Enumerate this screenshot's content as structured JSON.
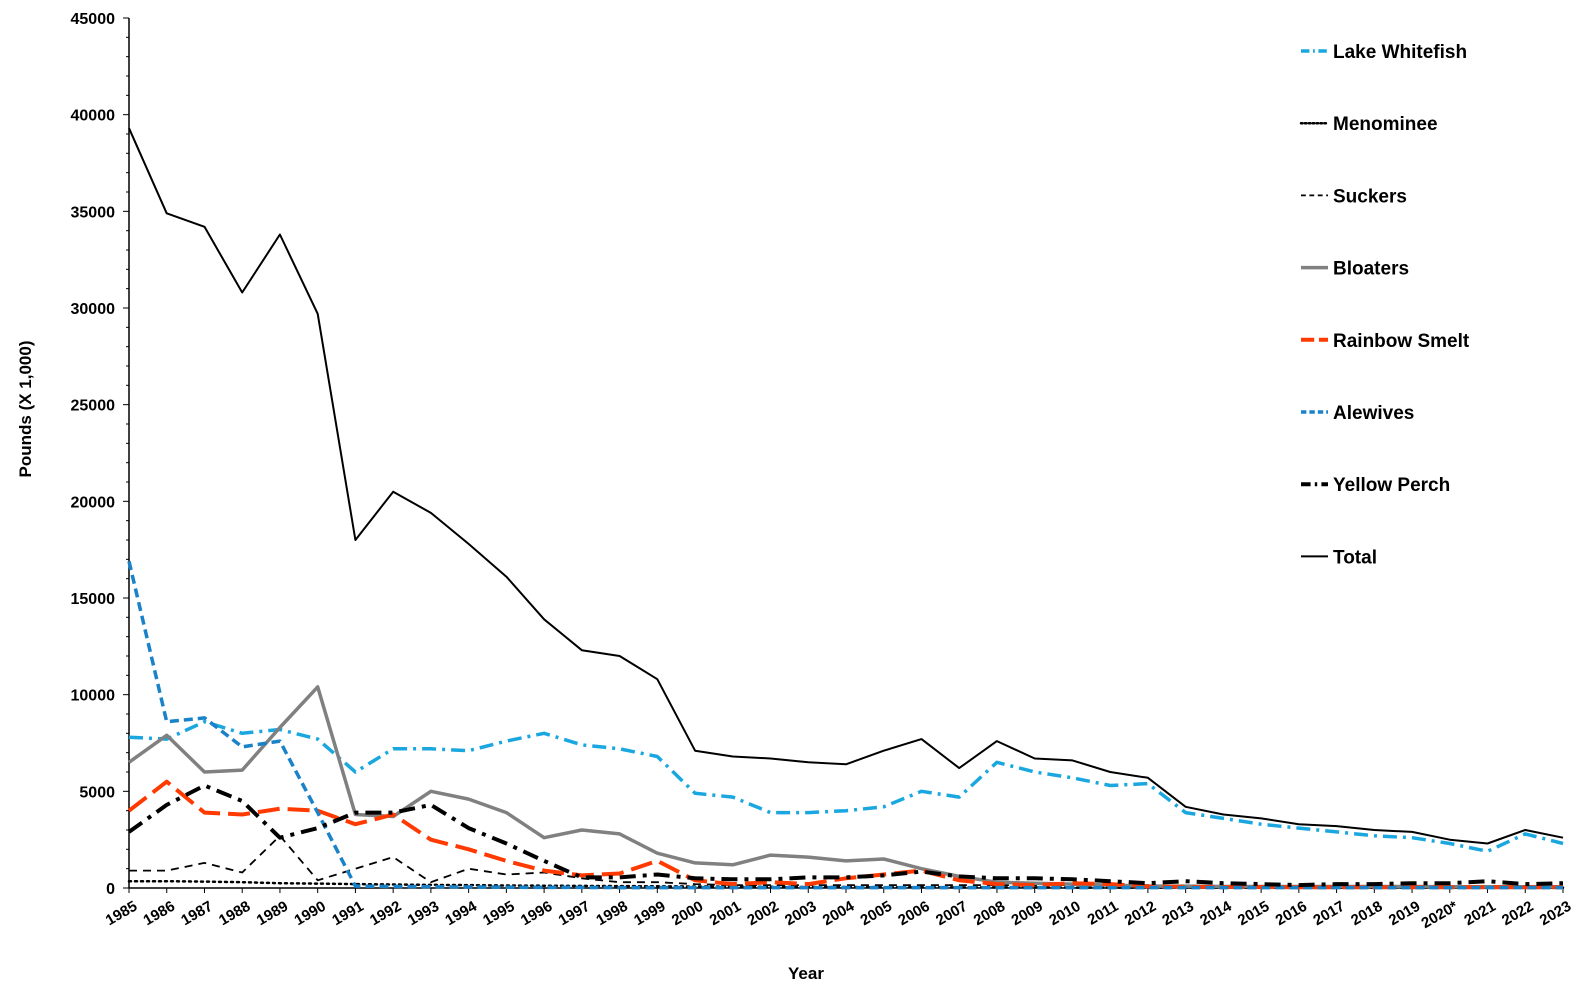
{
  "chart_data": {
    "type": "line",
    "title": "",
    "xlabel": "Year",
    "ylabel": "Pounds (X 1,000)",
    "ylim": [
      0,
      45000
    ],
    "yticks": [
      0,
      5000,
      10000,
      15000,
      20000,
      25000,
      30000,
      35000,
      40000,
      45000
    ],
    "grid": false,
    "legend_position": "right",
    "categories": [
      "1985",
      "1986",
      "1987",
      "1988",
      "1989",
      "1990",
      "1991",
      "1992",
      "1993",
      "1994",
      "1995",
      "1996",
      "1997",
      "1998",
      "1999",
      "2000",
      "2001",
      "2002",
      "2003",
      "2004",
      "2005",
      "2006",
      "2007",
      "2008",
      "2009",
      "2010",
      "2011",
      "2012",
      "2013",
      "2014",
      "2015",
      "2016",
      "2017",
      "2018",
      "2019",
      "2020*",
      "2021",
      "2022",
      "2023"
    ],
    "series": [
      {
        "name": "Lake Whitefish",
        "color": "#1aa7e0",
        "style": "dashdot",
        "values": [
          7800,
          7700,
          8600,
          8000,
          8200,
          7700,
          6000,
          7200,
          7200,
          7100,
          7600,
          8000,
          7400,
          7200,
          6800,
          4900,
          4700,
          3900,
          3900,
          4000,
          4200,
          5000,
          4700,
          6500,
          6000,
          5700,
          5300,
          5400,
          3900,
          3600,
          3300,
          3100,
          2900,
          2700,
          2600,
          2300,
          1900,
          2800,
          2300
        ]
      },
      {
        "name": "Menominee",
        "color": "#000000",
        "style": "dotted",
        "values": [
          350,
          350,
          330,
          300,
          250,
          230,
          200,
          180,
          160,
          150,
          130,
          120,
          110,
          100,
          90,
          80,
          70,
          60,
          50,
          50,
          40,
          40,
          30,
          30,
          30,
          20,
          20,
          20,
          20,
          20,
          20,
          20,
          20,
          20,
          20,
          20,
          20,
          20,
          20
        ]
      },
      {
        "name": "Suckers",
        "color": "#000000",
        "style": "shortdash",
        "values": [
          900,
          900,
          1300,
          800,
          2700,
          400,
          1000,
          1600,
          300,
          1000,
          700,
          800,
          500,
          300,
          300,
          200,
          150,
          150,
          150,
          150,
          150,
          150,
          150,
          150,
          150,
          150,
          150,
          150,
          100,
          100,
          100,
          100,
          100,
          100,
          100,
          100,
          100,
          100,
          100
        ]
      },
      {
        "name": "Bloaters",
        "color": "#808080",
        "style": "solid",
        "values": [
          6500,
          7900,
          6000,
          6100,
          8300,
          10400,
          3800,
          3700,
          5000,
          4600,
          3900,
          2600,
          3000,
          2800,
          1800,
          1300,
          1200,
          1700,
          1600,
          1400,
          1500,
          1000,
          600,
          300,
          250,
          200,
          150,
          100,
          100,
          80,
          80,
          80,
          80,
          80,
          80,
          60,
          60,
          60,
          60
        ]
      },
      {
        "name": "Rainbow Smelt",
        "color": "#ff3a00",
        "style": "longdash",
        "values": [
          4000,
          5500,
          3900,
          3800,
          4100,
          4000,
          3300,
          3800,
          2500,
          2000,
          1400,
          900,
          650,
          750,
          1400,
          400,
          200,
          300,
          200,
          500,
          700,
          900,
          400,
          200,
          150,
          250,
          200,
          80,
          60,
          50,
          50,
          40,
          40,
          40,
          40,
          40,
          40,
          40,
          40
        ]
      },
      {
        "name": "Alewives",
        "color": "#1a82c8",
        "style": "dashed",
        "values": [
          16900,
          8600,
          8800,
          7300,
          7600,
          3900,
          100,
          80,
          60,
          50,
          40,
          30,
          30,
          20,
          20,
          20,
          20,
          20,
          20,
          20,
          20,
          20,
          20,
          20,
          20,
          20,
          20,
          20,
          20,
          20,
          20,
          20,
          20,
          20,
          20,
          20,
          20,
          20,
          20
        ]
      },
      {
        "name": "Yellow Perch",
        "color": "#000000",
        "style": "dashdot-thick",
        "values": [
          2900,
          4300,
          5300,
          4500,
          2600,
          3100,
          3900,
          3900,
          4300,
          3100,
          2300,
          1400,
          550,
          550,
          700,
          500,
          450,
          450,
          550,
          550,
          650,
          850,
          600,
          500,
          500,
          450,
          350,
          250,
          350,
          250,
          200,
          150,
          200,
          200,
          250,
          250,
          350,
          200,
          250
        ]
      },
      {
        "name": "Total",
        "color": "#000000",
        "style": "solid-thin",
        "values": [
          39300,
          34900,
          34200,
          30800,
          33800,
          29700,
          18000,
          20500,
          19400,
          17800,
          16100,
          13900,
          12300,
          12000,
          10800,
          7100,
          6800,
          6700,
          6500,
          6400,
          7100,
          7700,
          6200,
          7600,
          6700,
          6600,
          6000,
          5700,
          4200,
          3800,
          3600,
          3300,
          3200,
          3000,
          2900,
          2500,
          2300,
          3000,
          2600
        ]
      }
    ]
  }
}
